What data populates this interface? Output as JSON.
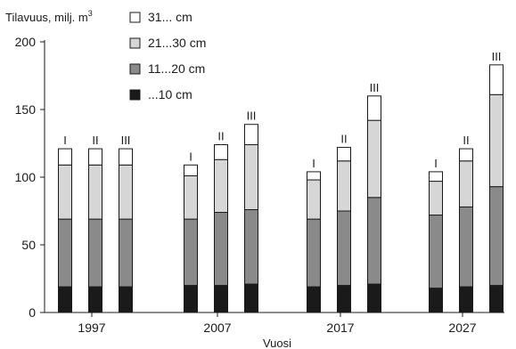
{
  "chart_data": {
    "type": "bar",
    "stacked": true,
    "ylabel": "Tilavuus, milj. m",
    "ylabel_sup": "3",
    "xlabel": "Vuosi",
    "ylim": [
      0,
      200
    ],
    "yticks": [
      0,
      50,
      100,
      150,
      200
    ],
    "groups": [
      "1997",
      "2007",
      "2017",
      "2027"
    ],
    "scenarios": [
      "I",
      "II",
      "III"
    ],
    "series": [
      {
        "name": "...10 cm",
        "color": "#1a1a1a",
        "values": [
          19,
          19,
          19,
          20,
          20,
          21,
          19,
          20,
          21,
          18,
          19,
          20
        ]
      },
      {
        "name": "11...20 cm",
        "color": "#8a8a8a",
        "values": [
          50,
          50,
          50,
          49,
          54,
          55,
          50,
          55,
          64,
          54,
          59,
          73
        ]
      },
      {
        "name": "21...30 cm",
        "color": "#d6d6d6",
        "values": [
          40,
          40,
          40,
          32,
          39,
          48,
          29,
          37,
          57,
          25,
          34,
          68
        ]
      },
      {
        "name": "31... cm",
        "color": "#ffffff",
        "values": [
          12,
          12,
          12,
          8,
          11,
          15,
          6,
          10,
          18,
          7,
          9,
          22
        ]
      }
    ],
    "legend": {
      "position": "top-left",
      "order": [
        3,
        2,
        1,
        0
      ]
    },
    "grid": false
  }
}
